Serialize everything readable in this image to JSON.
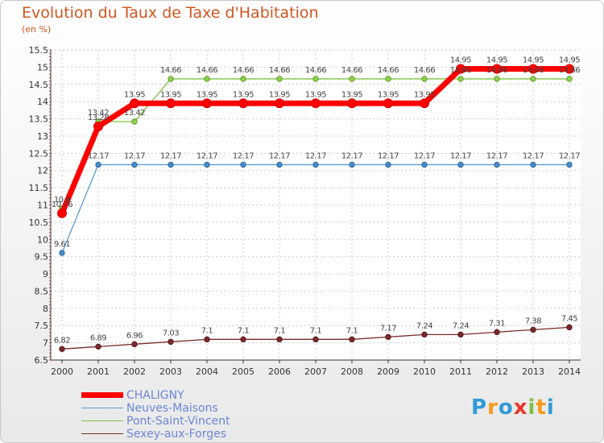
{
  "title": "Evolution du Taux de Taxe d'Habitation",
  "subtitle": "(en %)",
  "logo_text": "Proxiti",
  "chart_data": {
    "type": "line",
    "title": "Evolution du Taux de Taxe d'Habitation",
    "subtitle": "(en %)",
    "x": [
      2000,
      2001,
      2002,
      2003,
      2004,
      2005,
      2006,
      2007,
      2008,
      2009,
      2010,
      2011,
      2012,
      2013,
      2014
    ],
    "ylim": [
      6.5,
      15.5
    ],
    "yticks": [
      6.5,
      7,
      7.5,
      8,
      8.5,
      9,
      9.5,
      10,
      10.5,
      11,
      11.5,
      12,
      12.5,
      13,
      13.5,
      14,
      14.5,
      15,
      15.5
    ],
    "grid": true,
    "legend_position": "bottom-left",
    "series": [
      {
        "name": "CHALIGNY",
        "color": "#ff0000",
        "values": [
          10.76,
          13.28,
          13.95,
          13.95,
          13.95,
          13.95,
          13.95,
          13.95,
          13.95,
          13.95,
          13.95,
          14.95,
          14.95,
          14.95,
          14.95
        ],
        "labels": [
          "10.76",
          "13.28",
          "13.95",
          "13.95",
          "13.95",
          "13.95",
          "13.95",
          "13.95",
          "13.95",
          "13.95",
          "13.95",
          "14.95",
          "14.95",
          "14.95",
          "14.95"
        ]
      },
      {
        "name": "Neuves-Maisons",
        "color": "#5b9bd5",
        "values": [
          9.61,
          12.17,
          12.17,
          12.17,
          12.17,
          12.17,
          12.17,
          12.17,
          12.17,
          12.17,
          12.17,
          12.17,
          12.17,
          12.17,
          12.17
        ],
        "labels": [
          "9.61",
          "12.17",
          "12.17",
          "12.17",
          "12.17",
          "12.17",
          "12.17",
          "12.17",
          "12.17",
          "12.17",
          "12.17",
          "12.17",
          "12.17",
          "12.17",
          "12.17"
        ]
      },
      {
        "name": "Pont-Saint-Vincent",
        "color": "#7dc242",
        "values": [
          10.9,
          13.42,
          13.42,
          14.66,
          14.66,
          14.66,
          14.66,
          14.66,
          14.66,
          14.66,
          14.66,
          14.66,
          14.66,
          14.66,
          14.66
        ],
        "labels": [
          "10.9",
          "13.42",
          "13.42",
          "14.66",
          "14.66",
          "14.66",
          "14.66",
          "14.66",
          "14.66",
          "14.66",
          "14.66",
          "14.66",
          "14.66",
          "14.66",
          "14.66"
        ]
      },
      {
        "name": "Sexey-aux-Forges",
        "color": "#7a2a2a",
        "values": [
          6.82,
          6.89,
          6.96,
          7.03,
          7.1,
          7.1,
          7.1,
          7.1,
          7.1,
          7.17,
          7.24,
          7.24,
          7.31,
          7.38,
          7.45
        ],
        "labels": [
          "6.82",
          "6.89",
          "6.96",
          "7.03",
          "7.1",
          "7.1",
          "7.1",
          "7.1",
          "7.1",
          "7.17",
          "7.24",
          "7.24",
          "7.31",
          "7.38",
          "7.45"
        ]
      }
    ]
  }
}
